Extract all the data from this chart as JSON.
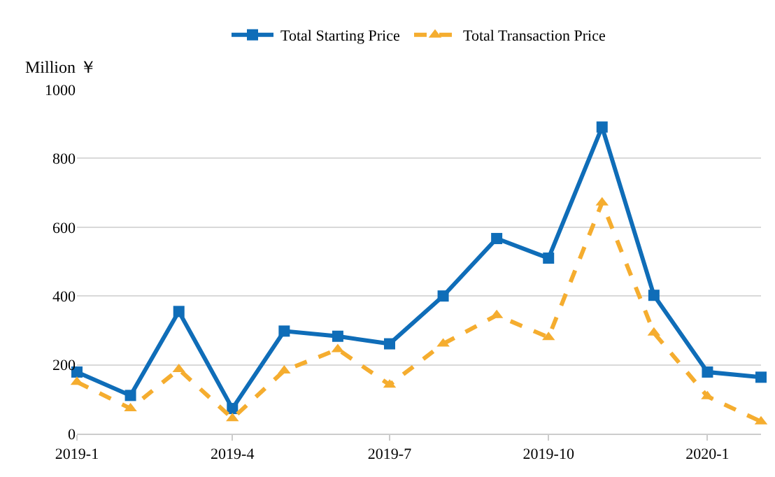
{
  "chart_data": {
    "type": "line",
    "ylabel": "Million ￥",
    "x": [
      "2019-01",
      "2019-02",
      "2019-03",
      "2019-04",
      "2019-05",
      "2019-06",
      "2019-07",
      "2019-08",
      "2019-09",
      "2019-10",
      "2019-11",
      "2019-12",
      "2020-01",
      "2020-02"
    ],
    "series": [
      {
        "name": "Total Starting Price",
        "color": "#0f6db8",
        "marker": "square",
        "line_style": "solid",
        "values": [
          179,
          111,
          355,
          73,
          298,
          283,
          261,
          400,
          567,
          510,
          891,
          402,
          179,
          164
        ]
      },
      {
        "name": "Total Transaction Price",
        "color": "#f5ad2f",
        "marker": "triangle",
        "line_style": "dashed",
        "values": [
          150,
          73,
          187,
          44,
          183,
          245,
          142,
          261,
          344,
          280,
          671,
          293,
          108,
          35
        ]
      }
    ],
    "xlim": [
      "2019-01",
      "2020-02"
    ],
    "xticks": [
      {
        "value": "2019-01",
        "label": "2019-1"
      },
      {
        "value": "2019-04",
        "label": "2019-4"
      },
      {
        "value": "2019-07",
        "label": "2019-7"
      },
      {
        "value": "2019-10",
        "label": "2019-10"
      },
      {
        "value": "2020-01",
        "label": "2020-1"
      }
    ],
    "ylim": [
      0,
      1000
    ],
    "yticks": [
      0,
      200,
      400,
      600,
      800,
      1000
    ],
    "grid": "y",
    "legend": "top"
  }
}
